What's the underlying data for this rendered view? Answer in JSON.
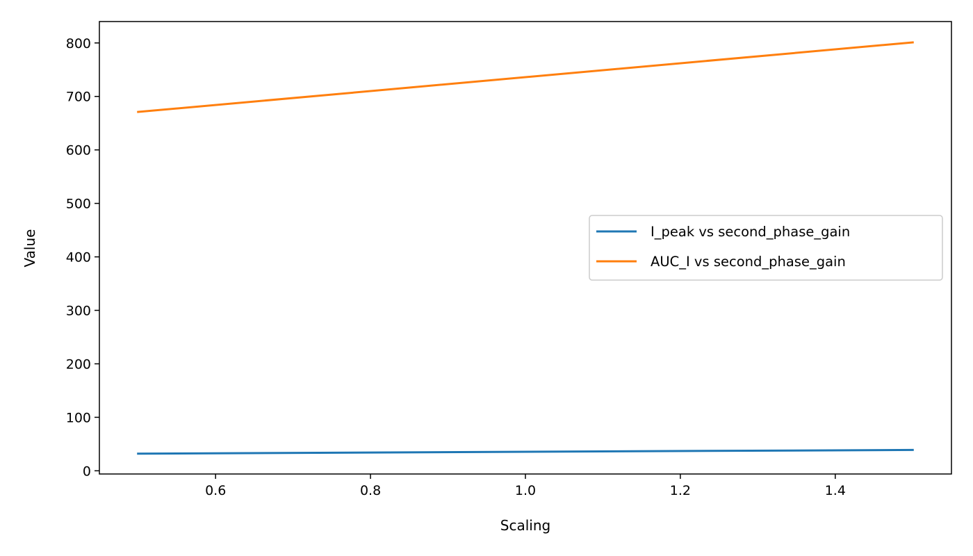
{
  "chart_data": {
    "type": "line",
    "title": "",
    "xlabel": "Scaling",
    "ylabel": "Value",
    "xlim": [
      0.45,
      1.55
    ],
    "ylim": [
      -6,
      840
    ],
    "x_ticks": [
      0.6,
      0.8,
      1.0,
      1.2,
      1.4
    ],
    "x_tick_labels": [
      "0.6",
      "0.8",
      "1.0",
      "1.2",
      "1.4"
    ],
    "y_ticks": [
      0,
      100,
      200,
      300,
      400,
      500,
      600,
      700,
      800
    ],
    "y_tick_labels": [
      "0",
      "100",
      "200",
      "300",
      "400",
      "500",
      "600",
      "700",
      "800"
    ],
    "grid": false,
    "legend_position": "center-right",
    "series": [
      {
        "name": "I_peak vs second_phase_gain",
        "color": "#1f77b4",
        "x": [
          0.5,
          1.5
        ],
        "values": [
          32,
          39
        ]
      },
      {
        "name": "AUC_I vs second_phase_gain",
        "color": "#ff7f0e",
        "x": [
          0.5,
          1.5
        ],
        "values": [
          671,
          801
        ]
      }
    ]
  }
}
